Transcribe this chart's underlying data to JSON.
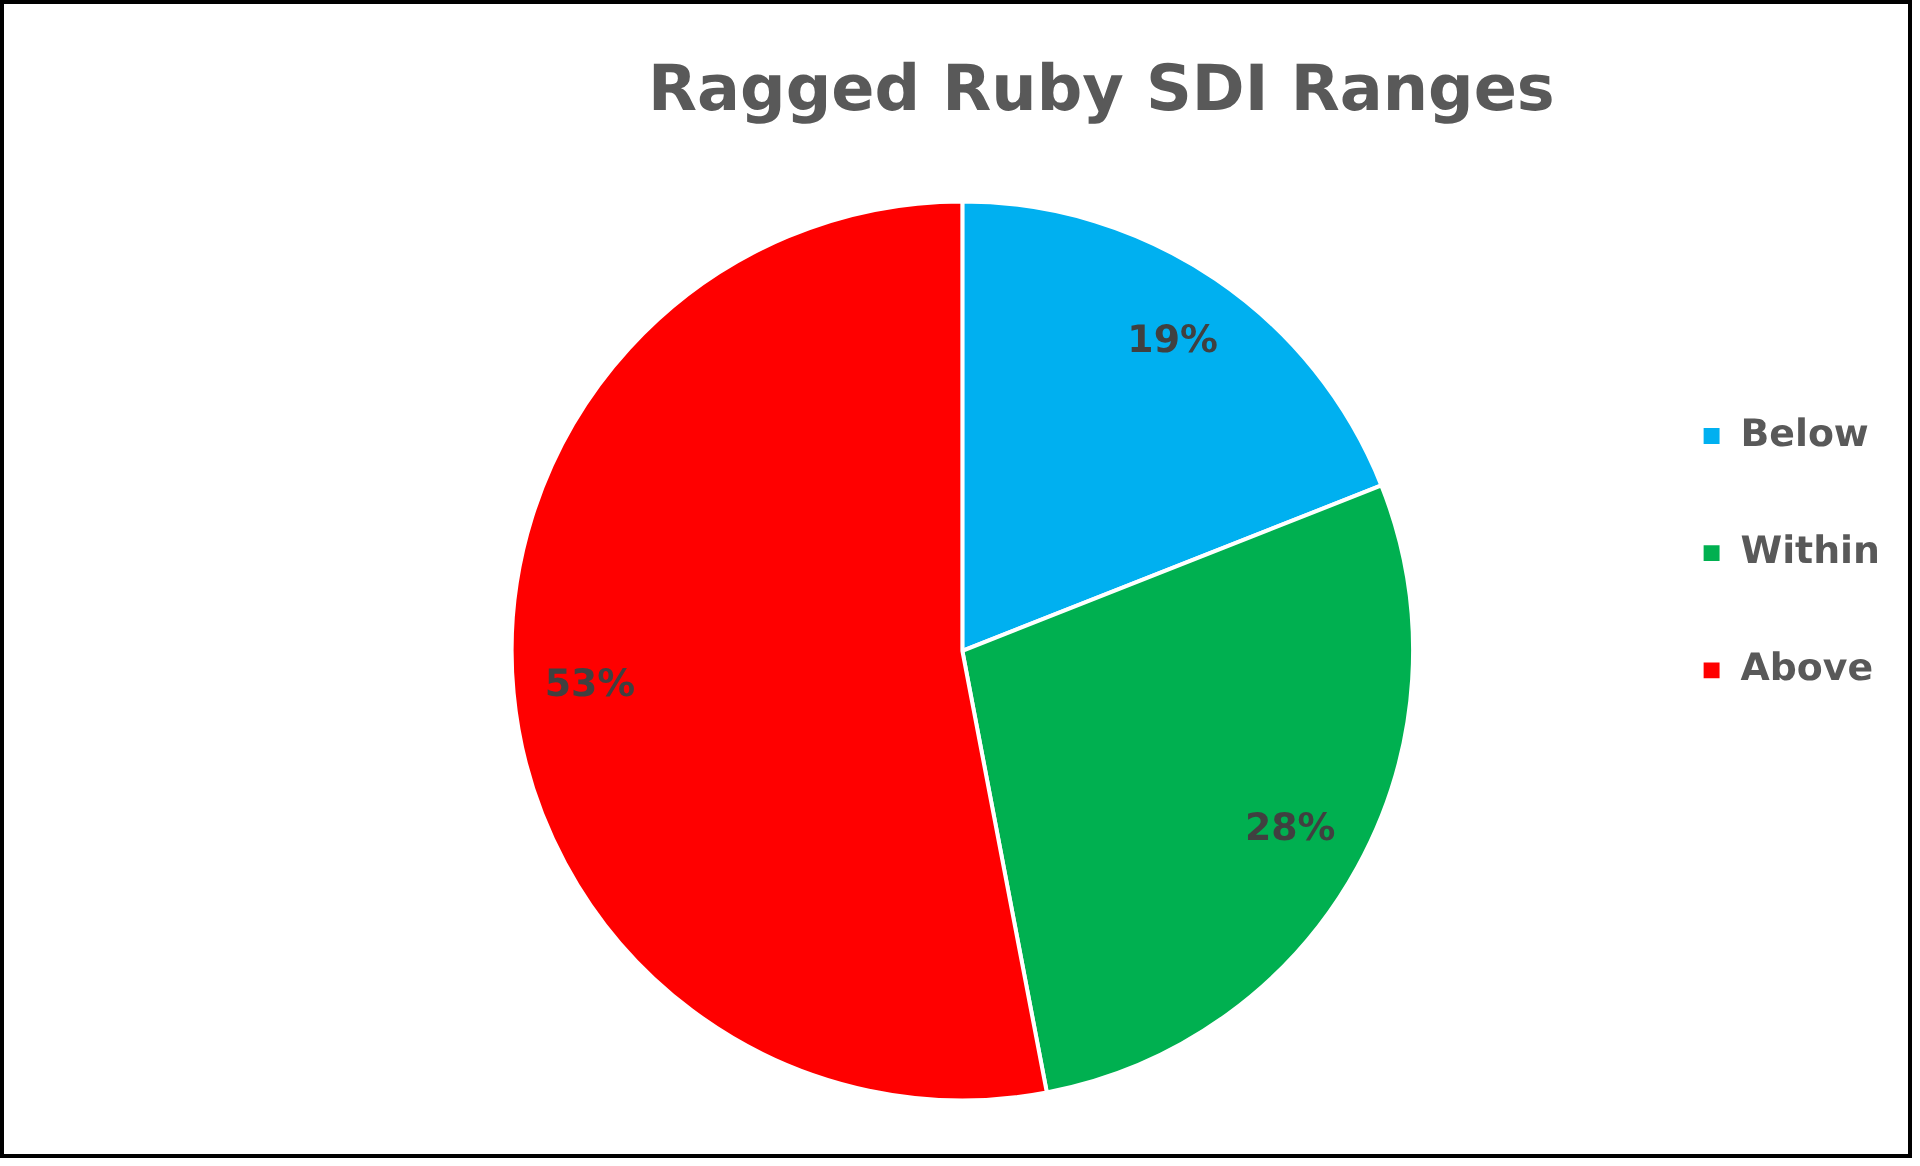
{
  "chart_data": {
    "type": "pie",
    "title": "Ragged Ruby SDI Ranges",
    "categories": [
      "Below",
      "Within",
      "Above"
    ],
    "values": [
      19,
      28,
      53
    ],
    "colors": [
      "#00b0f0",
      "#00b050",
      "#ff0000"
    ],
    "value_labels": [
      "19%",
      "28%",
      "53%"
    ],
    "legend": "right"
  }
}
